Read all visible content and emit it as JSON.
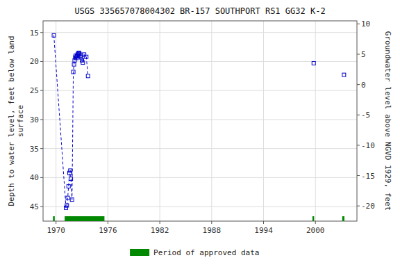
{
  "chart_data": {
    "type": "line",
    "title": "USGS 335657078004302 BR-157 SOUTHPORT RS1 GG32 K-2",
    "ylabel": "Depth to water level, feet below land\nsurface",
    "y2label": "Groundwater level above NGVD 1929, feet",
    "xlim": [
      1968.5,
      2004.8
    ],
    "xticks": [
      1970,
      1976,
      1982,
      1988,
      1994,
      2000
    ],
    "ylim": [
      47.5,
      13.0
    ],
    "yticks": [
      15,
      20,
      25,
      30,
      35,
      40,
      45
    ],
    "y2lim": [
      -22.5,
      10.5
    ],
    "y2ticks": [
      10,
      5,
      0,
      -5,
      -10,
      -15,
      -20
    ],
    "grid": true,
    "legend": "bottom",
    "series": [
      {
        "type": "line",
        "color": "#0000cc",
        "marker": "square",
        "line_style": "dashed",
        "x": [
          1969.75,
          1971.15,
          1971.25,
          1971.35,
          1971.45,
          1971.55,
          1971.65,
          1971.72,
          1971.85,
          1972.0,
          1972.08,
          1972.15,
          1972.22,
          1972.28,
          1972.35,
          1972.42,
          1972.5,
          1972.58,
          1972.65,
          1972.72,
          1972.82,
          1972.9,
          1973.0,
          1973.1,
          1973.25,
          1973.5,
          1973.7
        ],
        "values": [
          15.5,
          45.2,
          44.8,
          43.5,
          41.5,
          39.2,
          38.8,
          40.2,
          43.8,
          21.8,
          20.5,
          19.8,
          19.3,
          19.0,
          19.4,
          19.1,
          18.8,
          18.6,
          18.5,
          18.7,
          19.0,
          19.3,
          19.8,
          20.2,
          18.8,
          19.2,
          22.5
        ]
      },
      {
        "type": "scatter",
        "color": "#0000cc",
        "marker": "square",
        "x": [
          1999.8,
          2003.3
        ],
        "values": [
          20.3,
          22.3
        ]
      },
      {
        "type": "range",
        "name": "Period of approved data",
        "color": "#008800",
        "start": [
          1969.65,
          1971.0,
          1999.65,
          2003.1
        ],
        "end": [
          1969.85,
          1975.6,
          1999.85,
          2003.35
        ]
      }
    ]
  }
}
